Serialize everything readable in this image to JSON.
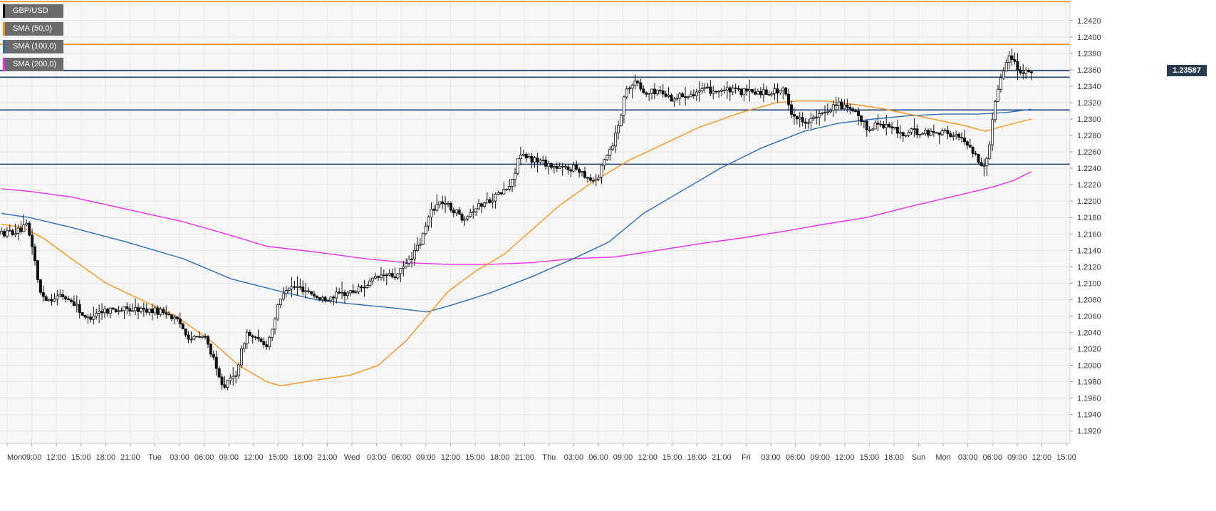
{
  "chart_data": {
    "type": "candlestick",
    "title": "",
    "symbol": "GBP/USD",
    "current_price_label": "1.23587",
    "current_price": 1.23587,
    "ylim": [
      1.1905,
      1.2445
    ],
    "y_ticks": [
      "1.1920",
      "1.1940",
      "1.1960",
      "1.1980",
      "1.2000",
      "1.2020",
      "1.2040",
      "1.2060",
      "1.2080",
      "1.2100",
      "1.2120",
      "1.2140",
      "1.2160",
      "1.2180",
      "1.2200",
      "1.2220",
      "1.2240",
      "1.2260",
      "1.2280",
      "1.2300",
      "1.2320",
      "1.2340",
      "1.2360",
      "1.2380",
      "1.2400",
      "1.2420"
    ],
    "x_ticks": [
      "Mon",
      "09:00",
      "12:00",
      "15:00",
      "18:00",
      "21:00",
      "Tue",
      "03:00",
      "06:00",
      "09:00",
      "12:00",
      "15:00",
      "18:00",
      "21:00",
      "Wed",
      "03:00",
      "06:00",
      "09:00",
      "12:00",
      "15:00",
      "18:00",
      "21:00",
      "Thu",
      "03:00",
      "06:00",
      "09:00",
      "12:00",
      "15:00",
      "18:00",
      "21:00",
      "Fri",
      "03:00",
      "06:00",
      "09:00",
      "12:00",
      "15:00",
      "18:00",
      "Sun",
      "Mon",
      "03:00",
      "06:00",
      "09:00",
      "12:00",
      "15:00"
    ],
    "legend": [
      {
        "label": "SMA (50,0)",
        "color": "#f7931e"
      },
      {
        "label": "SMA (100,0)",
        "color": "#2d6db5"
      },
      {
        "label": "SMA (200,0)",
        "color": "#e830e8"
      }
    ],
    "horizontal_levels": [
      {
        "value": 1.2443,
        "color": "#f7931e"
      },
      {
        "value": 1.2391,
        "color": "#f7931e"
      },
      {
        "value": 1.2359,
        "color": "#1f3f7a"
      },
      {
        "value": 1.2351,
        "color": "#1f3f7a"
      },
      {
        "value": 1.2311,
        "color": "#1f3f7a"
      },
      {
        "value": 1.2245,
        "color": "#1f3f7a"
      }
    ],
    "price_path": [
      [
        0,
        1.216
      ],
      [
        30,
        1.2164
      ],
      [
        40,
        1.217
      ],
      [
        50,
        1.214
      ],
      [
        58,
        1.209
      ],
      [
        70,
        1.208
      ],
      [
        90,
        1.2085
      ],
      [
        110,
        1.2075
      ],
      [
        125,
        1.2055
      ],
      [
        140,
        1.2065
      ],
      [
        160,
        1.2068
      ],
      [
        200,
        1.2068
      ],
      [
        240,
        1.2065
      ],
      [
        260,
        1.205
      ],
      [
        275,
        1.2032
      ],
      [
        295,
        1.2035
      ],
      [
        305,
        1.2015
      ],
      [
        315,
        1.1985
      ],
      [
        325,
        1.1975
      ],
      [
        340,
        1.199
      ],
      [
        355,
        1.204
      ],
      [
        370,
        1.203
      ],
      [
        385,
        1.2025
      ],
      [
        400,
        1.207
      ],
      [
        410,
        1.2095
      ],
      [
        430,
        1.2095
      ],
      [
        445,
        1.209
      ],
      [
        460,
        1.208
      ],
      [
        480,
        1.2085
      ],
      [
        510,
        1.209
      ],
      [
        530,
        1.21
      ],
      [
        550,
        1.211
      ],
      [
        570,
        1.2108
      ],
      [
        590,
        1.213
      ],
      [
        605,
        1.215
      ],
      [
        620,
        1.219
      ],
      [
        635,
        1.22
      ],
      [
        650,
        1.219
      ],
      [
        665,
        1.218
      ],
      [
        680,
        1.219
      ],
      [
        700,
        1.22
      ],
      [
        720,
        1.221
      ],
      [
        735,
        1.222
      ],
      [
        745,
        1.2255
      ],
      [
        760,
        1.2252
      ],
      [
        780,
        1.2248
      ],
      [
        800,
        1.224
      ],
      [
        830,
        1.224
      ],
      [
        850,
        1.2225
      ],
      [
        860,
        1.223
      ],
      [
        870,
        1.2255
      ],
      [
        880,
        1.227
      ],
      [
        890,
        1.23
      ],
      [
        900,
        1.234
      ],
      [
        915,
        1.2345
      ],
      [
        925,
        1.233
      ],
      [
        945,
        1.2335
      ],
      [
        965,
        1.2325
      ],
      [
        985,
        1.233
      ],
      [
        1010,
        1.2335
      ],
      [
        1040,
        1.2335
      ],
      [
        1070,
        1.2333
      ],
      [
        1100,
        1.2333
      ],
      [
        1125,
        1.2335
      ],
      [
        1135,
        1.231
      ],
      [
        1145,
        1.23
      ],
      [
        1160,
        1.2298
      ],
      [
        1180,
        1.2305
      ],
      [
        1200,
        1.232
      ],
      [
        1210,
        1.2315
      ],
      [
        1230,
        1.2305
      ],
      [
        1245,
        1.2288
      ],
      [
        1260,
        1.2295
      ],
      [
        1280,
        1.229
      ],
      [
        1295,
        1.228
      ],
      [
        1310,
        1.2285
      ],
      [
        1330,
        1.2283
      ],
      [
        1350,
        1.2285
      ],
      [
        1370,
        1.228
      ],
      [
        1390,
        1.227
      ],
      [
        1400,
        1.2255
      ],
      [
        1410,
        1.224
      ],
      [
        1420,
        1.2265
      ],
      [
        1425,
        1.231
      ],
      [
        1432,
        1.234
      ],
      [
        1440,
        1.236
      ],
      [
        1450,
        1.238
      ],
      [
        1460,
        1.2362
      ],
      [
        1470,
        1.2358
      ],
      [
        1476,
        1.2359
      ]
    ],
    "sma50": [
      [
        0,
        1.2172
      ],
      [
        30,
        1.2168
      ],
      [
        60,
        1.2155
      ],
      [
        100,
        1.213
      ],
      [
        150,
        1.21
      ],
      [
        200,
        1.208
      ],
      [
        250,
        1.206
      ],
      [
        300,
        1.203
      ],
      [
        340,
        1.2
      ],
      [
        380,
        1.198
      ],
      [
        400,
        1.1975
      ],
      [
        450,
        1.1982
      ],
      [
        500,
        1.1988
      ],
      [
        540,
        1.2
      ],
      [
        580,
        1.203
      ],
      [
        610,
        1.206
      ],
      [
        640,
        1.209
      ],
      [
        680,
        1.2115
      ],
      [
        720,
        1.2135
      ],
      [
        760,
        1.2165
      ],
      [
        800,
        1.2195
      ],
      [
        850,
        1.2225
      ],
      [
        900,
        1.225
      ],
      [
        950,
        1.227
      ],
      [
        1000,
        1.229
      ],
      [
        1060,
        1.2308
      ],
      [
        1110,
        1.232
      ],
      [
        1140,
        1.2322
      ],
      [
        1180,
        1.2322
      ],
      [
        1220,
        1.2318
      ],
      [
        1260,
        1.2313
      ],
      [
        1300,
        1.2306
      ],
      [
        1340,
        1.2299
      ],
      [
        1380,
        1.2292
      ],
      [
        1410,
        1.2285
      ],
      [
        1430,
        1.229
      ],
      [
        1476,
        1.23
      ]
    ],
    "sma100": [
      [
        0,
        1.2185
      ],
      [
        40,
        1.218
      ],
      [
        100,
        1.2168
      ],
      [
        180,
        1.215
      ],
      [
        260,
        1.213
      ],
      [
        330,
        1.2105
      ],
      [
        400,
        1.209
      ],
      [
        450,
        1.208
      ],
      [
        500,
        1.2075
      ],
      [
        560,
        1.207
      ],
      [
        610,
        1.2065
      ],
      [
        640,
        1.2072
      ],
      [
        700,
        1.2088
      ],
      [
        760,
        1.2108
      ],
      [
        820,
        1.213
      ],
      [
        870,
        1.215
      ],
      [
        920,
        1.2185
      ],
      [
        970,
        1.221
      ],
      [
        1030,
        1.224
      ],
      [
        1090,
        1.2265
      ],
      [
        1150,
        1.2285
      ],
      [
        1200,
        1.2295
      ],
      [
        1250,
        1.23
      ],
      [
        1300,
        1.2304
      ],
      [
        1350,
        1.2306
      ],
      [
        1400,
        1.2306
      ],
      [
        1440,
        1.2308
      ],
      [
        1476,
        1.2312
      ]
    ],
    "sma200": [
      [
        0,
        1.2215
      ],
      [
        40,
        1.2212
      ],
      [
        100,
        1.2205
      ],
      [
        180,
        1.219
      ],
      [
        260,
        1.2175
      ],
      [
        330,
        1.2158
      ],
      [
        380,
        1.2145
      ],
      [
        450,
        1.2138
      ],
      [
        520,
        1.213
      ],
      [
        580,
        1.2125
      ],
      [
        640,
        1.2123
      ],
      [
        700,
        1.2123
      ],
      [
        760,
        1.2125
      ],
      [
        820,
        1.213
      ],
      [
        880,
        1.2132
      ],
      [
        940,
        1.214
      ],
      [
        1000,
        1.2148
      ],
      [
        1060,
        1.2155
      ],
      [
        1120,
        1.2163
      ],
      [
        1180,
        1.2172
      ],
      [
        1240,
        1.218
      ],
      [
        1300,
        1.2193
      ],
      [
        1360,
        1.2205
      ],
      [
        1420,
        1.2217
      ],
      [
        1450,
        1.2225
      ],
      [
        1476,
        1.2236
      ]
    ]
  }
}
